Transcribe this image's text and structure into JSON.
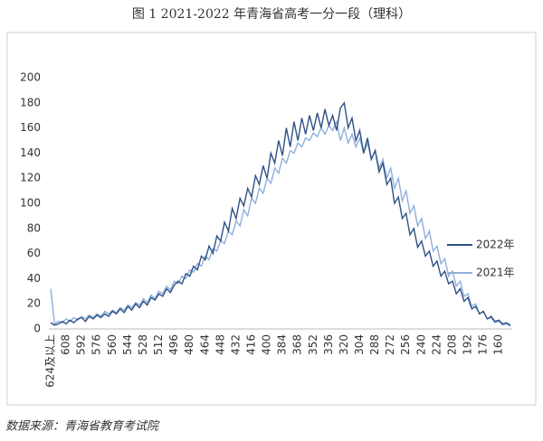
{
  "chart_data": {
    "type": "line",
    "title": "图 1 2021-2022 年青海省高考一分一段（理科）",
    "source": "数据来源：青海省教育考试院",
    "categories": [
      "624及以上",
      null,
      null,
      null,
      "608",
      null,
      null,
      null,
      "592",
      null,
      null,
      null,
      "576",
      null,
      null,
      null,
      "560",
      null,
      null,
      null,
      "544",
      null,
      null,
      null,
      "528",
      null,
      null,
      null,
      "512",
      null,
      null,
      null,
      "496",
      null,
      null,
      null,
      "480",
      null,
      null,
      null,
      "464",
      null,
      null,
      null,
      "448",
      null,
      null,
      null,
      "432",
      null,
      null,
      null,
      "416",
      null,
      null,
      null,
      "400",
      null,
      null,
      null,
      "384",
      null,
      null,
      null,
      "368",
      null,
      null,
      null,
      "352",
      null,
      null,
      null,
      "336",
      null,
      null,
      null,
      "320",
      null,
      null,
      null,
      "304",
      null,
      null,
      null,
      "288",
      null,
      null,
      null,
      "272",
      null,
      null,
      null,
      "256",
      null,
      null,
      null,
      "240",
      null,
      null,
      null,
      "224",
      null,
      null,
      null,
      "208",
      null,
      null,
      null,
      "192",
      null,
      null,
      null,
      "176",
      null,
      null,
      null,
      "160",
      null,
      null,
      null
    ],
    "series": [
      {
        "name": "2022年",
        "color": "#2f5286",
        "values": [
          5,
          3,
          4,
          6,
          4,
          7,
          5,
          8,
          9,
          6,
          10,
          8,
          11,
          9,
          12,
          10,
          14,
          12,
          16,
          13,
          18,
          15,
          20,
          17,
          22,
          19,
          25,
          23,
          28,
          26,
          32,
          29,
          35,
          38,
          36,
          44,
          42,
          50,
          47,
          58,
          55,
          66,
          60,
          74,
          70,
          85,
          78,
          96,
          88,
          104,
          98,
          112,
          105,
          122,
          115,
          130,
          120,
          140,
          132,
          150,
          138,
          160,
          145,
          165,
          150,
          168,
          155,
          170,
          158,
          172,
          160,
          175,
          162,
          170,
          158,
          176,
          180,
          160,
          168,
          150,
          158,
          140,
          152,
          135,
          142,
          125,
          132,
          115,
          120,
          100,
          105,
          88,
          92,
          75,
          80,
          65,
          70,
          58,
          62,
          50,
          54,
          42,
          46,
          36,
          38,
          28,
          32,
          22,
          25,
          16,
          18,
          12,
          14,
          8,
          10,
          6,
          7,
          4,
          5,
          3
        ]
      },
      {
        "name": "2021年",
        "color": "#8eb0da",
        "values": [
          32,
          4,
          6,
          5,
          8,
          6,
          9,
          7,
          10,
          8,
          11,
          9,
          12,
          10,
          14,
          12,
          15,
          13,
          17,
          15,
          19,
          17,
          21,
          19,
          24,
          21,
          27,
          24,
          30,
          28,
          34,
          31,
          38,
          36,
          42,
          40,
          47,
          45,
          52,
          50,
          58,
          55,
          64,
          62,
          70,
          68,
          78,
          75,
          86,
          82,
          95,
          90,
          104,
          100,
          112,
          108,
          120,
          116,
          128,
          124,
          136,
          132,
          142,
          140,
          148,
          145,
          152,
          150,
          156,
          153,
          160,
          155,
          162,
          158,
          165,
          150,
          160,
          148,
          155,
          145,
          152,
          140,
          148,
          135,
          142,
          128,
          135,
          120,
          128,
          112,
          120,
          102,
          110,
          92,
          98,
          82,
          88,
          72,
          78,
          62,
          66,
          52,
          56,
          42,
          46,
          34,
          38,
          26,
          28,
          18,
          20,
          12,
          14,
          8,
          9,
          5,
          6,
          3,
          4,
          2
        ]
      }
    ],
    "ylim": [
      0,
      200
    ],
    "yticks": [
      0,
      20,
      40,
      60,
      80,
      100,
      120,
      140,
      160,
      180,
      200
    ],
    "grid": false,
    "legend": "right"
  }
}
